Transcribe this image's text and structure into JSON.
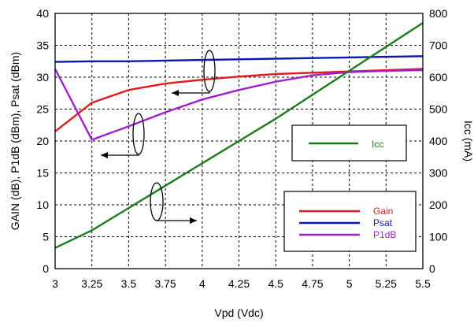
{
  "chart_data": {
    "type": "line",
    "xlabel": "Vpd (Vdc)",
    "ylabel_left": "GAIN (dB),  P1dB (dBm), Psat (dBm)",
    "ylabel_right": "Icc (mA)",
    "xlim": [
      3,
      5.5
    ],
    "ylim_left": [
      0,
      40
    ],
    "ylim_right": [
      0,
      800
    ],
    "grid": true,
    "x_ticks": [
      "3",
      "3.25",
      "3.5",
      "3.75",
      "4",
      "4.25",
      "4.5",
      "4.75",
      "5",
      "5.25",
      "5.5"
    ],
    "y_left_ticks": [
      "0",
      "5",
      "10",
      "15",
      "20",
      "25",
      "30",
      "35",
      "40"
    ],
    "y_right_ticks": [
      "0",
      "100",
      "200",
      "300",
      "400",
      "500",
      "600",
      "700",
      "800"
    ],
    "legend_right_axis": {
      "placement": "center-right",
      "entries": [
        {
          "name": "Icc",
          "color": "#1a7d1a"
        }
      ]
    },
    "legend_left_axis": {
      "placement": "bottom-right",
      "entries": [
        {
          "name": "Gain",
          "color": "#e01b1b"
        },
        {
          "name": "Psat",
          "color": "#0a18b0"
        },
        {
          "name": "P1dB",
          "color": "#a020d0"
        }
      ]
    },
    "series": [
      {
        "name": "Gain",
        "axis": "left",
        "color": "#e01b1b",
        "x": [
          3,
          3.25,
          3.5,
          3.75,
          4,
          4.25,
          4.5,
          4.75,
          5,
          5.25,
          5.5
        ],
        "y": [
          21.5,
          26,
          28,
          29,
          29.6,
          30.1,
          30.5,
          30.7,
          30.9,
          31.1,
          31.3
        ]
      },
      {
        "name": "Psat",
        "axis": "left",
        "color": "#0a18b0",
        "x": [
          3,
          3.25,
          3.5,
          3.75,
          4,
          4.25,
          4.5,
          4.75,
          5,
          5.25,
          5.5
        ],
        "y": [
          32.4,
          32.5,
          32.5,
          32.6,
          32.7,
          32.8,
          32.9,
          33.0,
          33.1,
          33.2,
          33.3
        ]
      },
      {
        "name": "P1dB",
        "axis": "left",
        "color": "#a020d0",
        "x": [
          3,
          3.25,
          3.5,
          3.75,
          4,
          4.25,
          4.5,
          4.75,
          5,
          5.25,
          5.5
        ],
        "y": [
          31.3,
          20.2,
          22.3,
          24.5,
          26.5,
          28.0,
          29.3,
          30.3,
          30.8,
          31.0,
          31.1
        ]
      },
      {
        "name": "Icc",
        "axis": "right",
        "color": "#1a7d1a",
        "x": [
          3,
          3.25,
          3.5,
          3.75,
          4,
          4.25,
          4.5,
          4.75,
          5,
          5.25,
          5.5
        ],
        "y": [
          65,
          120,
          190,
          260,
          330,
          400,
          470,
          545,
          620,
          695,
          770
        ]
      }
    ]
  }
}
